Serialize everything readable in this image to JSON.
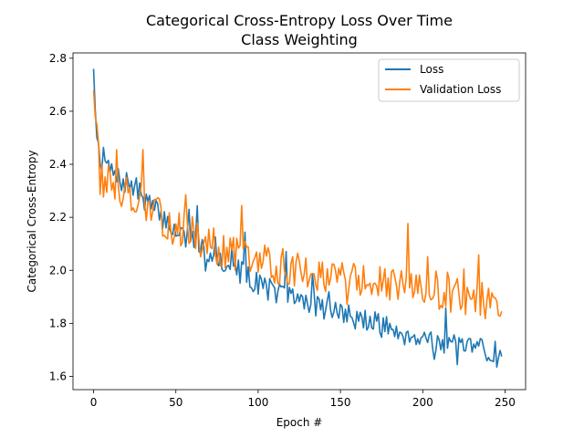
{
  "chart_data": {
    "type": "line",
    "title": "Categorical Cross-Entropy Loss Over Time",
    "subtitle": "Class Weighting",
    "xlabel": "Epoch #",
    "ylabel": "Categorical Cross-Entropy",
    "xlim": [
      -12.5,
      262.5
    ],
    "ylim": [
      1.55,
      2.82
    ],
    "xticks": [
      0,
      50,
      100,
      150,
      200,
      250
    ],
    "yticks": [
      1.6,
      1.8,
      2.0,
      2.2,
      2.4,
      2.6,
      2.8
    ],
    "xtick_labels": [
      "0",
      "50",
      "100",
      "150",
      "200",
      "250"
    ],
    "ytick_labels": [
      "1.6",
      "1.8",
      "2.0",
      "2.2",
      "2.4",
      "2.6",
      "2.8"
    ],
    "grid": false,
    "legend": "top-right",
    "series": [
      {
        "name": "Loss",
        "color": "#1f77b4",
        "anchors": [
          [
            0,
            2.76
          ],
          [
            2,
            2.5
          ],
          [
            4,
            2.44
          ],
          [
            6,
            2.42
          ],
          [
            8,
            2.4
          ],
          [
            10,
            2.38
          ],
          [
            12,
            2.36
          ],
          [
            15,
            2.34
          ],
          [
            20,
            2.33
          ],
          [
            25,
            2.31
          ],
          [
            30,
            2.28
          ],
          [
            35,
            2.24
          ],
          [
            40,
            2.21
          ],
          [
            45,
            2.18
          ],
          [
            50,
            2.15
          ],
          [
            55,
            2.13
          ],
          [
            60,
            2.11
          ],
          [
            65,
            2.09
          ],
          [
            70,
            2.07
          ],
          [
            75,
            2.05
          ],
          [
            80,
            2.03
          ],
          [
            85,
            2.01
          ],
          [
            90,
            1.99
          ],
          [
            95,
            1.97
          ],
          [
            100,
            1.95
          ],
          [
            110,
            1.92
          ],
          [
            120,
            1.9
          ],
          [
            130,
            1.88
          ],
          [
            140,
            1.86
          ],
          [
            150,
            1.84
          ],
          [
            160,
            1.82
          ],
          [
            170,
            1.8
          ],
          [
            180,
            1.78
          ],
          [
            190,
            1.76
          ],
          [
            200,
            1.75
          ],
          [
            210,
            1.73
          ],
          [
            220,
            1.71
          ],
          [
            230,
            1.7
          ],
          [
            240,
            1.69
          ],
          [
            246,
            1.67
          ],
          [
            248,
            1.675
          ]
        ],
        "jitter": 0.045,
        "seed": 7
      },
      {
        "name": "Validation Loss",
        "color": "#ff7f0e",
        "anchors": [
          [
            0,
            2.68
          ],
          [
            2,
            2.55
          ],
          [
            4,
            2.35
          ],
          [
            6,
            2.33
          ],
          [
            8,
            2.32
          ],
          [
            10,
            2.34
          ],
          [
            12,
            2.33
          ],
          [
            15,
            2.31
          ],
          [
            20,
            2.3
          ],
          [
            25,
            2.28
          ],
          [
            30,
            2.25
          ],
          [
            35,
            2.22
          ],
          [
            40,
            2.2
          ],
          [
            45,
            2.18
          ],
          [
            50,
            2.16
          ],
          [
            55,
            2.15
          ],
          [
            60,
            2.14
          ],
          [
            65,
            2.12
          ],
          [
            70,
            2.1
          ],
          [
            75,
            2.09
          ],
          [
            80,
            2.07
          ],
          [
            85,
            2.06
          ],
          [
            90,
            2.05
          ],
          [
            95,
            2.04
          ],
          [
            100,
            2.03
          ],
          [
            110,
            2.02
          ],
          [
            120,
            2.01
          ],
          [
            130,
            2.0
          ],
          [
            140,
            1.99
          ],
          [
            150,
            1.97
          ],
          [
            160,
            1.96
          ],
          [
            170,
            1.95
          ],
          [
            180,
            1.94
          ],
          [
            190,
            1.93
          ],
          [
            200,
            1.92
          ],
          [
            210,
            1.91
          ],
          [
            220,
            1.9
          ],
          [
            230,
            1.89
          ],
          [
            240,
            1.88
          ],
          [
            246,
            1.83
          ],
          [
            248,
            1.845
          ]
        ],
        "jitter": 0.07,
        "seed": 13
      }
    ]
  }
}
